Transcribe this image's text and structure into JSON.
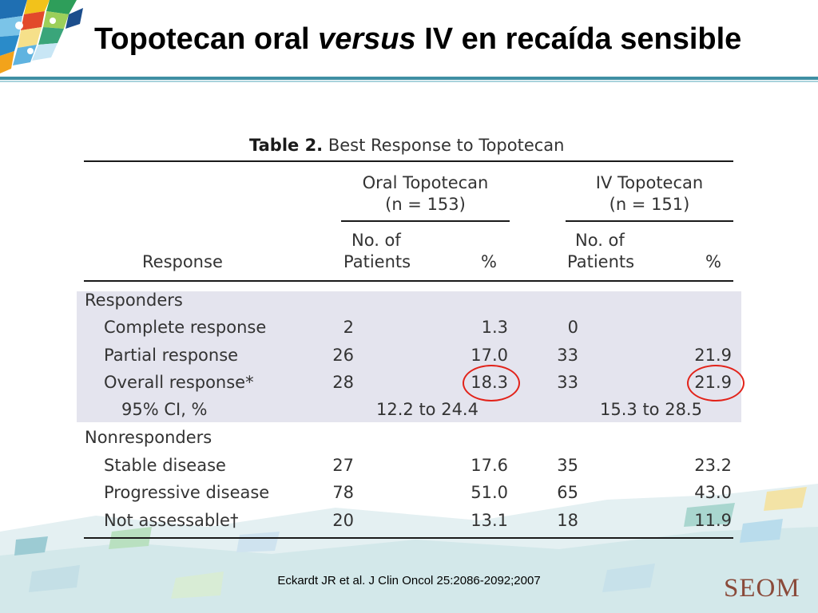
{
  "slide": {
    "title_pre": "Topotecan oral ",
    "title_em": "versus",
    "title_post": " IV en recaída sensible"
  },
  "table": {
    "caption_label": "Table 2.",
    "caption_text": " Best Response to Topotecan",
    "groups": [
      {
        "line1": "Oral Topotecan",
        "line2": "(n = 153)"
      },
      {
        "line1": "IV Topotecan",
        "line2": "(n = 151)"
      }
    ],
    "col_response": "Response",
    "col_patients_1": "No. of",
    "col_patients_2": "Patients",
    "col_percent": "%",
    "rows": [
      {
        "label": "Responders",
        "oral_n": "",
        "oral_pct": "",
        "iv_n": "",
        "iv_pct": ""
      },
      {
        "label": "Complete response",
        "oral_n": "2",
        "oral_pct": "1.3",
        "iv_n": "0",
        "iv_pct": ""
      },
      {
        "label": "Partial response",
        "oral_n": "26",
        "oral_pct": "17.0",
        "iv_n": "33",
        "iv_pct": "21.9"
      },
      {
        "label": "Overall response*",
        "oral_n": "28",
        "oral_pct": "18.3",
        "iv_n": "33",
        "iv_pct": "21.9"
      },
      {
        "label": "95% CI, %",
        "oral_ci": "12.2 to 24.4",
        "iv_ci": "15.3 to 28.5"
      },
      {
        "label": "Nonresponders",
        "oral_n": "",
        "oral_pct": "",
        "iv_n": "",
        "iv_pct": ""
      },
      {
        "label": "Stable disease",
        "oral_n": "27",
        "oral_pct": "17.6",
        "iv_n": "35",
        "iv_pct": "23.2"
      },
      {
        "label": "Progressive disease",
        "oral_n": "78",
        "oral_pct": "51.0",
        "iv_n": "65",
        "iv_pct": "43.0"
      },
      {
        "label": "Not assessable†",
        "oral_n": "20",
        "oral_pct": "13.1",
        "iv_n": "18",
        "iv_pct": "11.9"
      }
    ]
  },
  "highlight_color": "#e2231a",
  "citation": "Eckardt JR et al. J Clin Oncol 25:2086-2092;2007",
  "brand": "SEOM"
}
